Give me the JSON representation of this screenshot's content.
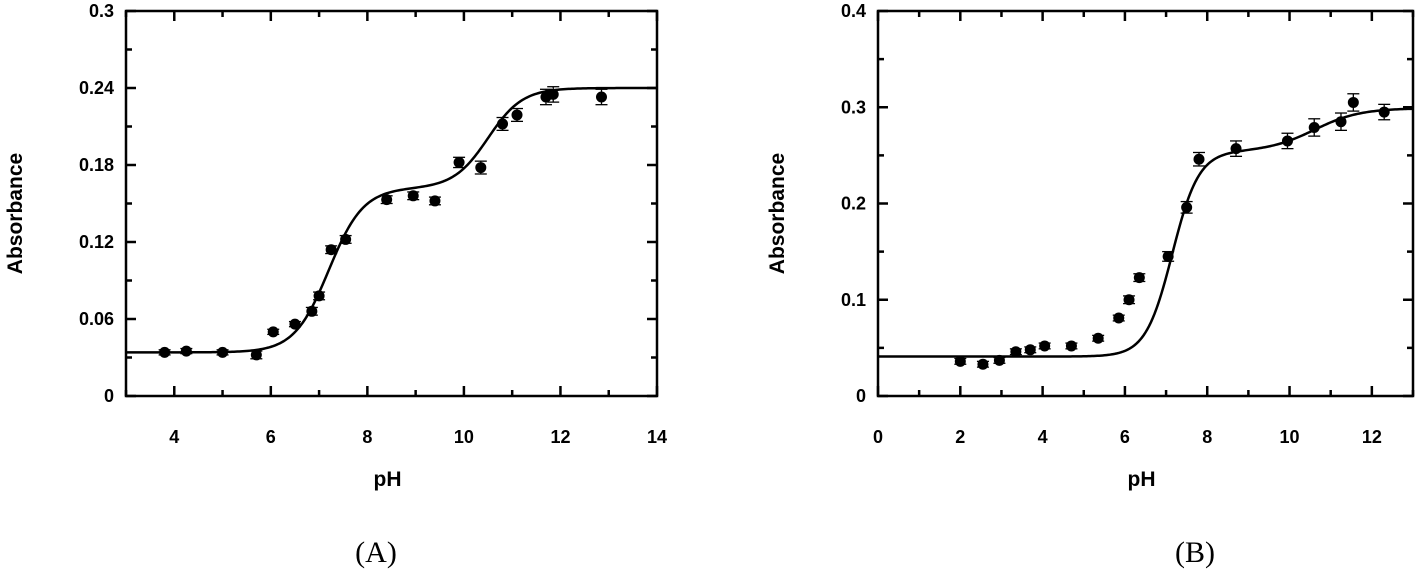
{
  "chart_data": [
    {
      "type": "scatter",
      "panel_label": "(A)",
      "xlabel": "pH",
      "ylabel": "Absorbance",
      "xlim": [
        3,
        14
      ],
      "ylim": [
        0,
        0.3
      ],
      "xticks": [
        4,
        6,
        8,
        10,
        12,
        14
      ],
      "xtick_labels": [
        "4",
        "6",
        "8",
        "10",
        "12",
        "14"
      ],
      "yticks": [
        0,
        0.06,
        0.12,
        0.18,
        0.24,
        0.3
      ],
      "ytick_labels": [
        "0",
        "0.06",
        "0.12",
        "0.18",
        "0.24",
        "0.3"
      ],
      "grid": false,
      "series": [
        {
          "points": [
            {
              "x": 3.8,
              "y": 0.034,
              "err": 0.002
            },
            {
              "x": 4.25,
              "y": 0.035,
              "err": 0.002
            },
            {
              "x": 5.0,
              "y": 0.034,
              "err": 0.002
            },
            {
              "x": 5.7,
              "y": 0.032,
              "err": 0.003
            },
            {
              "x": 6.05,
              "y": 0.05,
              "err": 0.002
            },
            {
              "x": 6.5,
              "y": 0.056,
              "err": 0.002
            },
            {
              "x": 6.85,
              "y": 0.066,
              "err": 0.003
            },
            {
              "x": 7.0,
              "y": 0.078,
              "err": 0.003
            },
            {
              "x": 7.25,
              "y": 0.114,
              "err": 0.003
            },
            {
              "x": 7.55,
              "y": 0.122,
              "err": 0.003
            },
            {
              "x": 8.4,
              "y": 0.153,
              "err": 0.003
            },
            {
              "x": 8.95,
              "y": 0.156,
              "err": 0.003
            },
            {
              "x": 9.4,
              "y": 0.152,
              "err": 0.003
            },
            {
              "x": 9.9,
              "y": 0.182,
              "err": 0.004
            },
            {
              "x": 10.35,
              "y": 0.178,
              "err": 0.005
            },
            {
              "x": 10.8,
              "y": 0.212,
              "err": 0.005
            },
            {
              "x": 11.1,
              "y": 0.219,
              "err": 0.005
            },
            {
              "x": 11.7,
              "y": 0.233,
              "err": 0.006
            },
            {
              "x": 11.85,
              "y": 0.235,
              "err": 0.006
            },
            {
              "x": 12.85,
              "y": 0.233,
              "err": 0.006
            }
          ],
          "fit_curve": {
            "kind": "two-step sigmoid",
            "baseline": 0.034,
            "steps": [
              {
                "amplitude": 0.128,
                "midpoint_pH": 7.2,
                "slope": 2.8
              },
              {
                "amplitude": 0.078,
                "midpoint_pH": 10.5,
                "slope": 2.8
              }
            ]
          }
        }
      ]
    },
    {
      "type": "scatter",
      "panel_label": "(B)",
      "xlabel": "pH",
      "ylabel": "Absorbance",
      "xlim": [
        0,
        13
      ],
      "ylim": [
        0,
        0.4
      ],
      "xticks": [
        0,
        2,
        4,
        6,
        8,
        10,
        12
      ],
      "xtick_labels": [
        "0",
        "2",
        "4",
        "6",
        "8",
        "10",
        "12"
      ],
      "yticks": [
        0,
        0.1,
        0.2,
        0.3,
        0.4
      ],
      "ytick_labels": [
        "0",
        "0.1",
        "0.2",
        "0.3",
        "0.4"
      ],
      "grid": false,
      "series": [
        {
          "points": [
            {
              "x": 2.0,
              "y": 0.036,
              "err": 0.003
            },
            {
              "x": 2.55,
              "y": 0.033,
              "err": 0.003
            },
            {
              "x": 2.95,
              "y": 0.037,
              "err": 0.003
            },
            {
              "x": 3.35,
              "y": 0.046,
              "err": 0.003
            },
            {
              "x": 3.7,
              "y": 0.048,
              "err": 0.003
            },
            {
              "x": 4.05,
              "y": 0.052,
              "err": 0.003
            },
            {
              "x": 4.7,
              "y": 0.052,
              "err": 0.003
            },
            {
              "x": 5.35,
              "y": 0.06,
              "err": 0.003
            },
            {
              "x": 5.85,
              "y": 0.081,
              "err": 0.003
            },
            {
              "x": 6.1,
              "y": 0.1,
              "err": 0.004
            },
            {
              "x": 6.35,
              "y": 0.123,
              "err": 0.004
            },
            {
              "x": 7.05,
              "y": 0.145,
              "err": 0.005
            },
            {
              "x": 7.5,
              "y": 0.196,
              "err": 0.006
            },
            {
              "x": 7.8,
              "y": 0.246,
              "err": 0.007
            },
            {
              "x": 8.7,
              "y": 0.257,
              "err": 0.008
            },
            {
              "x": 9.95,
              "y": 0.265,
              "err": 0.008
            },
            {
              "x": 10.6,
              "y": 0.279,
              "err": 0.009
            },
            {
              "x": 11.25,
              "y": 0.285,
              "err": 0.009
            },
            {
              "x": 11.55,
              "y": 0.305,
              "err": 0.009
            },
            {
              "x": 12.3,
              "y": 0.295,
              "err": 0.008
            }
          ],
          "fit_curve": {
            "kind": "two-step sigmoid",
            "baseline": 0.041,
            "steps": [
              {
                "amplitude": 0.213,
                "midpoint_pH": 7.15,
                "slope": 3.1
              },
              {
                "amplitude": 0.045,
                "midpoint_pH": 10.6,
                "slope": 1.8
              }
            ]
          }
        }
      ]
    }
  ]
}
